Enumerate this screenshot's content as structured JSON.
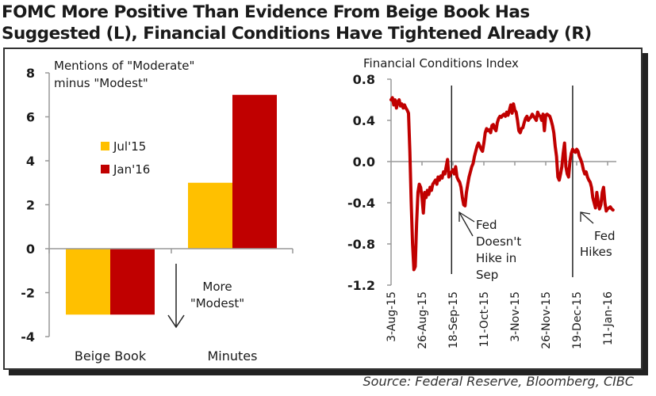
{
  "title": {
    "line1": "FOMC More Positive Than Evidence From Beige Book Has",
    "line2": "Suggested (L), Financial Conditions Have Tightened Already (R)"
  },
  "source": "Source: Federal Reserve, Bloomberg, CIBC",
  "colors": {
    "jul15": "#FFC000",
    "jan16": "#C00000",
    "line": "#C00000",
    "axis": "#999999",
    "text": "#1a1a1a",
    "tick_label": "#1a1a1a"
  },
  "chart_data": [
    {
      "type": "bar",
      "title": "Mentions of \"Moderate\" minus \"Modest\"",
      "title_lines": [
        "Mentions of \"Moderate\"",
        "minus \"Modest\""
      ],
      "categories": [
        "Beige Book",
        "Minutes"
      ],
      "series": [
        {
          "name": "Jul'15",
          "values": [
            -3,
            3
          ]
        },
        {
          "name": "Jan'16",
          "values": [
            -3,
            7
          ]
        }
      ],
      "ylim": [
        -4,
        8
      ],
      "yticks": [
        8,
        6,
        4,
        2,
        0,
        -2,
        -4
      ],
      "ytick_labels": [
        "8",
        "6",
        "4",
        "2",
        "0",
        "-2",
        "-4"
      ],
      "legend": {
        "placement": "center-left",
        "entries": [
          "Jul'15",
          "Jan'16"
        ]
      },
      "annotation": {
        "lines": [
          "More",
          "\"Modest\""
        ],
        "arrow": "down"
      },
      "xlabel": "",
      "ylabel": ""
    },
    {
      "type": "line",
      "title": "Financial Conditions Index",
      "ylim": [
        -1.2,
        0.8
      ],
      "yticks": [
        0.8,
        0.4,
        0.0,
        -0.4,
        -0.8,
        -1.2
      ],
      "ytick_labels": [
        "0.8",
        "0.4",
        "0.0",
        "-0.4",
        "-0.8",
        "-1.2"
      ],
      "xlim": [
        "2015-08-03",
        "2016-01-20"
      ],
      "xtick_labels": [
        "3-Aug-15",
        "26-Aug-15",
        "18-Sep-15",
        "11-Oct-15",
        "3-Nov-15",
        "26-Nov-15",
        "19-Dec-15",
        "11-Jan-16"
      ],
      "xticks_day_offset": [
        0,
        23,
        46,
        69,
        92,
        115,
        138,
        161
      ],
      "series": [
        {
          "name": "Financial Conditions Index",
          "day_offset": [
            0,
            1,
            2,
            3,
            4,
            5,
            6,
            7,
            8,
            9,
            10,
            11,
            12,
            13,
            14,
            15,
            16,
            17,
            18,
            19,
            20,
            21,
            22,
            23,
            24,
            25,
            26,
            27,
            28,
            29,
            30,
            31,
            32,
            33,
            34,
            35,
            36,
            37,
            38,
            39,
            40,
            41,
            42,
            43,
            44,
            45,
            46,
            47,
            48,
            49,
            50,
            51,
            52,
            53,
            54,
            55,
            56,
            57,
            58,
            59,
            60,
            61,
            62,
            63,
            64,
            65,
            66,
            67,
            68,
            69,
            70,
            71,
            72,
            73,
            74,
            75,
            76,
            77,
            78,
            79,
            80,
            81,
            82,
            83,
            84,
            85,
            86,
            87,
            88,
            89,
            90,
            91,
            92,
            93,
            94,
            95,
            96,
            97,
            98,
            99,
            100,
            101,
            102,
            103,
            104,
            105,
            106,
            107,
            108,
            109,
            110,
            111,
            112,
            113,
            114,
            115,
            116,
            117,
            118,
            119,
            120,
            121,
            122,
            123,
            124,
            125,
            126,
            127,
            128,
            129,
            130,
            131,
            132,
            133,
            134,
            135,
            136,
            137,
            138,
            139,
            140,
            141,
            142,
            143,
            144,
            145,
            146,
            147,
            148,
            149,
            150,
            151,
            152,
            153,
            154,
            155,
            156,
            157,
            158,
            159,
            160,
            161,
            162,
            163,
            164,
            165
          ],
          "values": [
            0.6,
            0.62,
            0.55,
            0.6,
            0.52,
            0.58,
            0.6,
            0.54,
            0.56,
            0.52,
            0.55,
            0.52,
            0.5,
            0.47,
            0.1,
            -0.4,
            -0.8,
            -1.05,
            -1.02,
            -0.6,
            -0.3,
            -0.22,
            -0.25,
            -0.35,
            -0.5,
            -0.3,
            -0.35,
            -0.28,
            -0.32,
            -0.25,
            -0.28,
            -0.22,
            -0.2,
            -0.18,
            -0.22,
            -0.15,
            -0.18,
            -0.14,
            -0.16,
            -0.1,
            -0.12,
            -0.05,
            0.02,
            -0.15,
            -0.12,
            -0.1,
            -0.08,
            -0.12,
            -0.05,
            -0.15,
            -0.18,
            -0.2,
            -0.25,
            -0.35,
            -0.42,
            -0.43,
            -0.3,
            -0.22,
            -0.15,
            -0.1,
            -0.05,
            -0.02,
            0.05,
            0.1,
            0.15,
            0.18,
            0.15,
            0.12,
            0.1,
            0.18,
            0.28,
            0.32,
            0.3,
            0.31,
            0.28,
            0.35,
            0.36,
            0.32,
            0.3,
            0.38,
            0.42,
            0.44,
            0.43,
            0.45,
            0.46,
            0.44,
            0.48,
            0.45,
            0.5,
            0.55,
            0.47,
            0.56,
            0.5,
            0.48,
            0.4,
            0.3,
            0.28,
            0.32,
            0.33,
            0.38,
            0.42,
            0.44,
            0.4,
            0.42,
            0.43,
            0.46,
            0.44,
            0.42,
            0.4,
            0.48,
            0.45,
            0.44,
            0.4,
            0.46,
            0.3,
            0.45,
            0.46,
            0.45,
            0.44,
            0.4,
            0.35,
            0.28,
            0.15,
            0.05,
            -0.15,
            -0.18,
            -0.12,
            -0.05,
            0.08,
            0.18,
            -0.05,
            -0.12,
            -0.15,
            0.0,
            0.08,
            0.12,
            0.1,
            0.09,
            0.12,
            0.1,
            0.05,
            0.02,
            -0.02,
            -0.08,
            -0.12,
            -0.1,
            -0.15,
            -0.18,
            -0.2,
            -0.25,
            -0.35,
            -0.4,
            -0.45,
            -0.3,
            -0.4,
            -0.46,
            -0.42,
            -0.3,
            -0.25,
            -0.4,
            -0.48,
            -0.46,
            -0.45,
            -0.44,
            -0.46,
            -0.47
          ]
        }
      ],
      "vlines": [
        {
          "day_offset": 45,
          "label_lines": [
            "Fed",
            "Doesn't",
            "Hike in",
            "Sep"
          ]
        },
        {
          "day_offset": 135,
          "label_lines": [
            "Fed",
            "Hikes"
          ]
        }
      ],
      "xlabel": "",
      "ylabel": ""
    }
  ]
}
